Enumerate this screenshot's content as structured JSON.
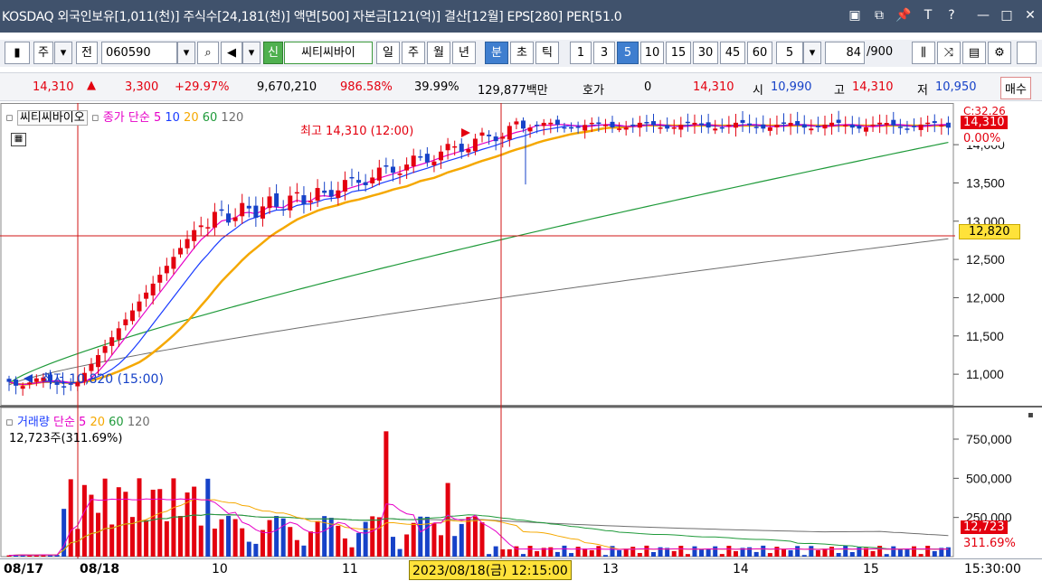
{
  "window": {
    "title": "KOSDAQ 외국인보유[1,011(천)] 주식수[24,181(천)] 액면[500] 자본금[121(억)] 결산[12월] EPS[280] PER[51.0",
    "buttons": [
      "▣",
      "⧉",
      "📌",
      "T",
      "?",
      "—",
      "□",
      "✕"
    ]
  },
  "toolbar": {
    "code_mode": "주",
    "scope": "전",
    "stock_code": "060590",
    "stock_name": "씨티씨바이",
    "tag_new": "신",
    "periods": [
      "일",
      "주",
      "월",
      "년",
      "분",
      "초",
      "틱"
    ],
    "selected_period": "분",
    "intervals": [
      "1",
      "3",
      "5",
      "10",
      "15",
      "30",
      "45",
      "60"
    ],
    "selected_interval": "5",
    "interval_value": "5",
    "count_current": "84",
    "count_total": "/900"
  },
  "quote": {
    "price": "14,310",
    "change": "3,300",
    "change_pct": "+29.97%",
    "volume": "9,670,210",
    "vol_ratio": "986.58%",
    "turnover": "39.99%",
    "amount": "129,877백만",
    "hoga_label": "호가",
    "hoga_value": "0",
    "current": "14,310",
    "open_label": "시",
    "open": "10,990",
    "high_label": "고",
    "high": "14,310",
    "low_label": "저",
    "low": "10,950",
    "buy_label": "매수"
  },
  "price_panel": {
    "stock_label": "씨티씨바이오",
    "legend_prefix": "종가 단순",
    "ma_labels": [
      "5",
      "10",
      "20",
      "60",
      "120"
    ],
    "high_annotation": "최고 14,310 (12:00)",
    "low_annotation": "최저 10,820 (15:00)",
    "cur_price_tag": "14,310",
    "cur_pct_tag": "0.00%",
    "prev_tag": "C:32.26",
    "crosshair_tag": "12,820"
  },
  "volume_panel": {
    "title": "거래량",
    "legend_prefix": "단순",
    "ma_labels": [
      "5",
      "20",
      "60",
      "120"
    ],
    "readout": "12,723주(311.69%)",
    "cur_vol_tag": "12,723",
    "cur_pct_tag": "311.69%"
  },
  "dates": {
    "labels": [
      "08/17",
      "08/18",
      "10",
      "11",
      "13",
      "14",
      "15"
    ],
    "crosshair_time": "2023/08/18(금) 12:15:00",
    "last_time": "15:30:00"
  },
  "colors": {
    "up": "#e3000f",
    "down": "#1642c8",
    "ma5": "#e600c8",
    "ma10": "#1a3cff",
    "ma20": "#f5a800",
    "ma60": "#1f9a3a",
    "ma120": "#6e6e6e",
    "crosshair": "#d01414"
  },
  "chart_data": {
    "type": "candlestick",
    "y_axis_ticks": [
      11000,
      11500,
      12000,
      12500,
      13000,
      13500,
      14000
    ],
    "volume_axis_ticks": [
      250000,
      500000,
      750000
    ],
    "x_labels": [
      "08/17",
      "08/18",
      "10",
      "11",
      "13",
      "14",
      "15"
    ]
  }
}
